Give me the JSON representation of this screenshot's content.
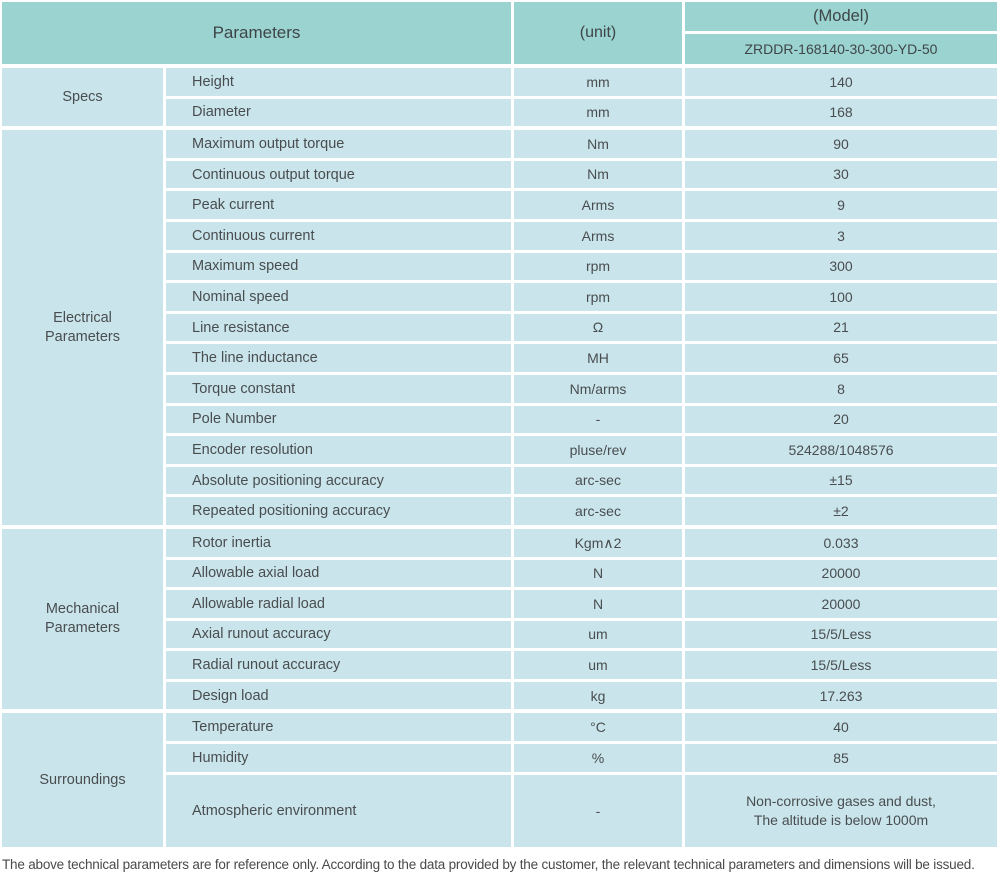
{
  "table": {
    "header": {
      "parameters_label": "Parameters",
      "unit_label": "(unit)",
      "model_label": "(Model)",
      "model_value": "ZRDDR-168140-30-300-YD-50"
    },
    "sections": [
      {
        "group": "Specs",
        "rows": [
          {
            "name": "Height",
            "unit": "mm",
            "value": "140"
          },
          {
            "name": "Diameter",
            "unit": "mm",
            "value": "168"
          }
        ]
      },
      {
        "group": "Electrical\nParameters",
        "rows": [
          {
            "name": "Maximum output torque",
            "unit": "Nm",
            "value": "90"
          },
          {
            "name": "Continuous output torque",
            "unit": "Nm",
            "value": "30"
          },
          {
            "name": "Peak current",
            "unit": "Arms",
            "value": "9"
          },
          {
            "name": "Continuous current",
            "unit": "Arms",
            "value": "3"
          },
          {
            "name": "Maximum speed",
            "unit": "rpm",
            "value": "300"
          },
          {
            "name": "Nominal speed",
            "unit": "rpm",
            "value": "100"
          },
          {
            "name": "Line resistance",
            "unit": "Ω",
            "value": "21"
          },
          {
            "name": "The line inductance",
            "unit": "MH",
            "value": "65"
          },
          {
            "name": "Torque constant",
            "unit": "Nm/arms",
            "value": "8"
          },
          {
            "name": "Pole Number",
            "unit": "-",
            "value": "20"
          },
          {
            "name": "Encoder resolution",
            "unit": "pluse/rev",
            "value": "524288/1048576"
          },
          {
            "name": "Absolute positioning accuracy",
            "unit": "arc-sec",
            "value": "±15"
          },
          {
            "name": "Repeated positioning accuracy",
            "unit": "arc-sec",
            "value": "±2"
          }
        ]
      },
      {
        "group": "Mechanical\nParameters",
        "rows": [
          {
            "name": "Rotor inertia",
            "unit": "Kgm∧2",
            "value": "0.033"
          },
          {
            "name": "Allowable axial load",
            "unit": "N",
            "value": "20000"
          },
          {
            "name": "Allowable radial load",
            "unit": "N",
            "value": "20000"
          },
          {
            "name": "Axial runout accuracy",
            "unit": "um",
            "value": "15/5/Less"
          },
          {
            "name": "Radial runout accuracy",
            "unit": "um",
            "value": "15/5/Less"
          },
          {
            "name": "Design load",
            "unit": "kg",
            "value": "17.263"
          }
        ]
      },
      {
        "group": "Surroundings",
        "rows": [
          {
            "name": "Temperature",
            "unit": "°C",
            "value": "40"
          },
          {
            "name": "Humidity",
            "unit": "%",
            "value": "85"
          },
          {
            "name": "Atmospheric environment",
            "unit": "-",
            "value": "Non-corrosive gases and dust,\nThe altitude is below 1000m"
          }
        ]
      }
    ]
  },
  "footer": {
    "note": "The above technical parameters are for reference only. According to the data provided by the customer, the relevant technical parameters and dimensions will be issued."
  },
  "colors": {
    "header_bg": "#9ad3d0",
    "row_bg": "#c9e5eb",
    "grid_line": "#ffffff",
    "text": "#494d4f"
  }
}
